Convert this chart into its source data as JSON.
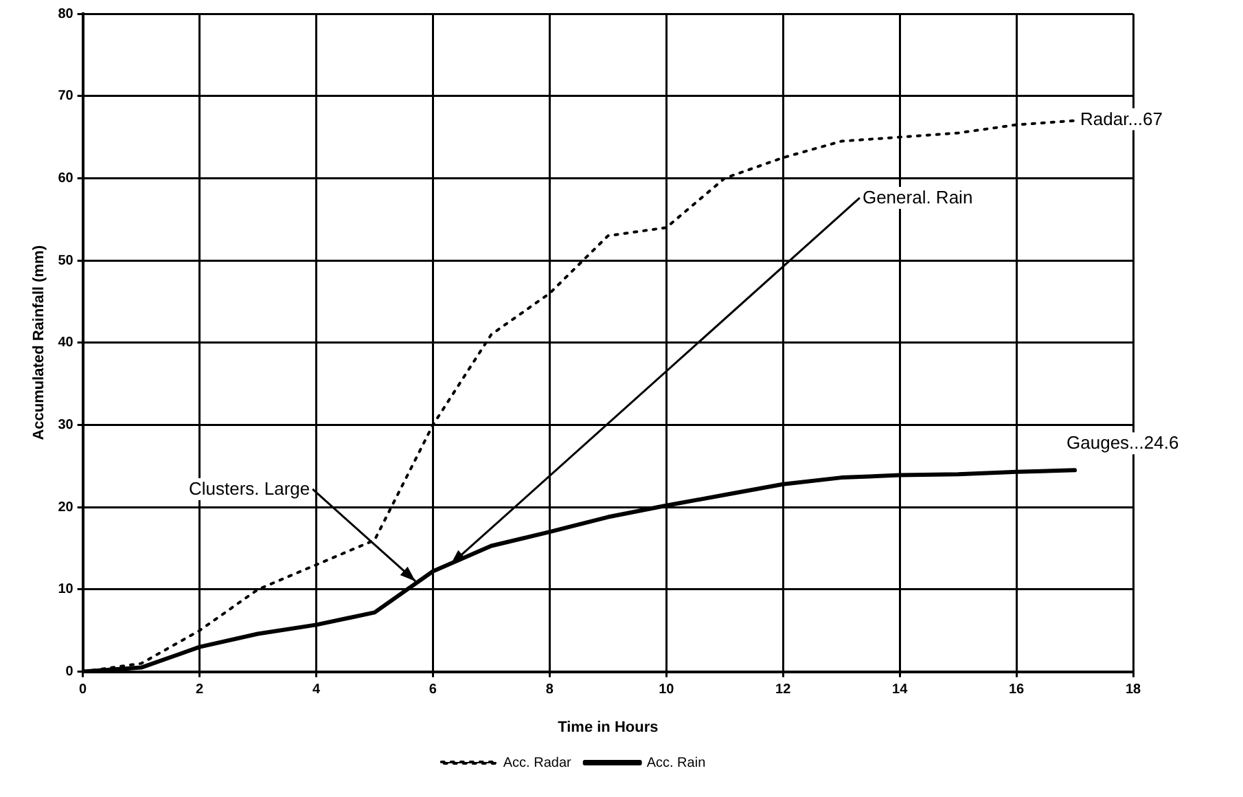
{
  "chart_data": {
    "type": "line",
    "xlabel": "Time in Hours",
    "ylabel": "Accumulated Rainfall (mm)",
    "x": [
      0,
      1,
      2,
      3,
      4,
      5,
      6,
      7,
      8,
      9,
      10,
      11,
      12,
      13,
      14,
      15,
      16,
      17
    ],
    "series": [
      {
        "name": "Acc. Radar",
        "color": "#000000",
        "line_style": "dotted",
        "values": [
          0,
          1,
          5,
          10,
          13,
          16,
          30,
          41,
          46,
          53,
          54,
          60,
          62.5,
          64.5,
          65,
          65.5,
          66.5,
          67
        ]
      },
      {
        "name": "Acc. Rain",
        "color": "#000000",
        "line_style": "solid",
        "values": [
          0,
          0.5,
          3,
          4.6,
          5.7,
          7.2,
          12.2,
          15.3,
          17,
          18.8,
          20.2,
          21.5,
          22.8,
          23.6,
          23.9,
          24,
          24.3,
          24.5
        ]
      }
    ],
    "xlim": [
      0,
      18
    ],
    "xticks": [
      0,
      2,
      4,
      6,
      8,
      10,
      12,
      14,
      16,
      18
    ],
    "ylim": [
      0,
      80
    ],
    "yticks": [
      0,
      10,
      20,
      30,
      40,
      50,
      60,
      70,
      80
    ],
    "grid": true,
    "legend": "bottom",
    "marker": "none",
    "annotations": [
      {
        "text": "Radar...67",
        "x": 17,
        "y": 67
      },
      {
        "text": "General. Rain",
        "x": 6.3,
        "y": 13
      },
      {
        "text": "Clusters. Large",
        "x": 5.7,
        "y": 11
      },
      {
        "text": "Gauges...24.6",
        "x": 17,
        "y": 24.6
      }
    ]
  }
}
